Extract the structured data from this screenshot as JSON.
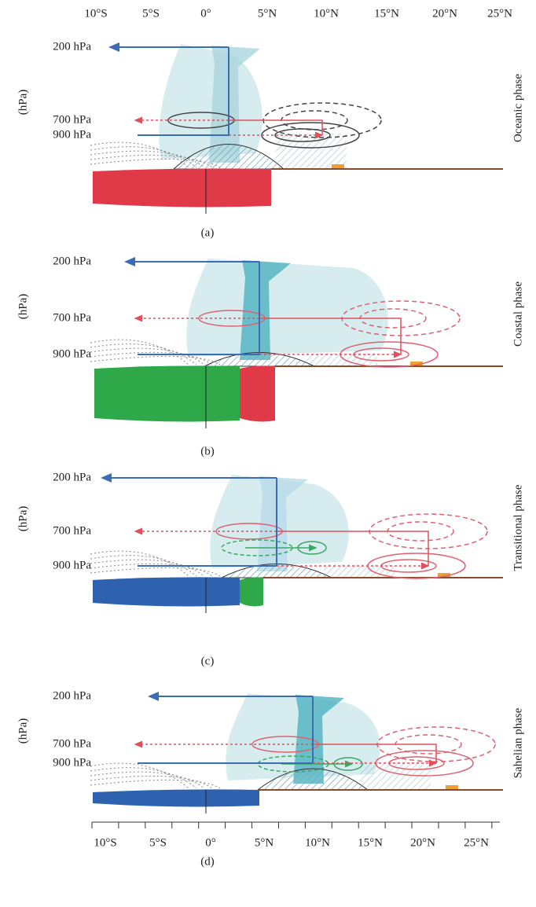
{
  "top_axis": {
    "labels": [
      "10°S",
      "5°S",
      "0°",
      "5°N",
      "10°N",
      "15°N",
      "20°N",
      "25°N"
    ]
  },
  "bottom_axis": {
    "labels": [
      "10°S",
      "5°S",
      "0°",
      "5°N",
      "10°N",
      "15°N",
      "20°N",
      "25°N"
    ]
  },
  "panels": [
    {
      "y_axis_title": "(hPa)",
      "levels": [
        "200 hPa",
        "700 hPa",
        "900 hPa"
      ],
      "phase": "Oceanic phase",
      "caption": "(a)"
    },
    {
      "y_axis_title": "(hPa)",
      "levels": [
        "200 hPa",
        "700 hPa",
        "900 hPa"
      ],
      "phase": "Coastal phase",
      "caption": "(b)"
    },
    {
      "y_axis_title": "(hPa)",
      "levels": [
        "200 hPa",
        "700 hPa",
        "900 hPa"
      ],
      "phase": "Transitional phase",
      "caption": "(c)"
    },
    {
      "y_axis_title": "(hPa)",
      "levels": [
        "200 hPa",
        "700 hPa",
        "900 hPa"
      ],
      "phase": "Sahelian phase",
      "caption": "(d)"
    }
  ]
}
